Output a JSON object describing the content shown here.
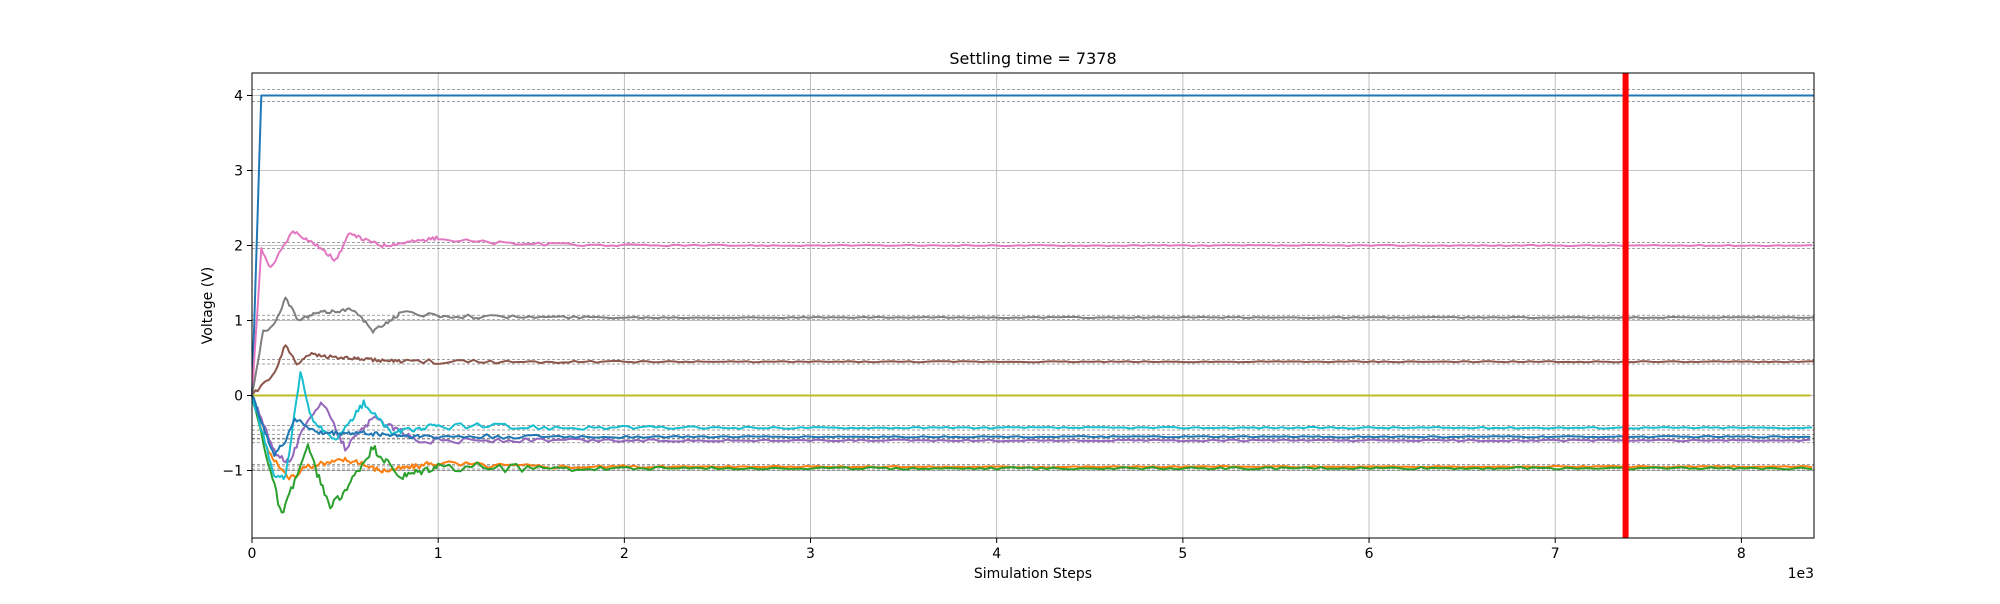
{
  "chart_data": {
    "type": "line",
    "title": "Settling time = 7378",
    "xlabel": "Simulation Steps",
    "ylabel": "Voltage (V)",
    "x_offset_text": "1e3",
    "x_scale": 1000,
    "xlim": [
      0,
      8390
    ],
    "ylim": [
      -1.9,
      4.3
    ],
    "x_ticks": [
      0,
      1000,
      2000,
      3000,
      4000,
      5000,
      6000,
      7000,
      8000
    ],
    "x_tick_labels": [
      "0",
      "1",
      "2",
      "3",
      "4",
      "5",
      "6",
      "7",
      "8"
    ],
    "y_ticks": [
      -1,
      0,
      1,
      2,
      3,
      4
    ],
    "y_tick_labels": [
      "−1",
      "0",
      "1",
      "2",
      "3",
      "4"
    ],
    "grid": true,
    "settling_time": 7378,
    "settling_line_color": "#ff0000",
    "series": [
      {
        "color": "#1f77b4",
        "final": 4.0,
        "tolerance": 0.08,
        "anchors": [
          [
            0,
            0
          ],
          [
            50,
            4.0
          ]
        ],
        "amplitude": 0,
        "decay": 1000,
        "seed": 0
      },
      {
        "color": "#ff7f0e",
        "final": -0.95,
        "tolerance": 0.03,
        "anchors": [
          [
            0,
            0
          ],
          [
            60,
            -0.55
          ],
          [
            100,
            -0.8
          ],
          [
            200,
            -1.1
          ],
          [
            300,
            -0.95
          ],
          [
            500,
            -0.85
          ],
          [
            700,
            -1.0
          ],
          [
            1000,
            -0.9
          ]
        ],
        "amplitude": 0.12,
        "decay": 900,
        "seed": 1
      },
      {
        "color": "#2ca02c",
        "final": -0.97,
        "tolerance": 0.03,
        "anchors": [
          [
            0,
            0
          ],
          [
            80,
            -0.8
          ],
          [
            160,
            -1.6
          ],
          [
            250,
            -1.0
          ],
          [
            300,
            -0.7
          ],
          [
            420,
            -1.5
          ],
          [
            520,
            -1.2
          ],
          [
            650,
            -0.7
          ],
          [
            800,
            -1.1
          ],
          [
            1000,
            -0.95
          ]
        ],
        "amplitude": 0.18,
        "decay": 900,
        "seed": 2
      },
      {
        "color": "#d62728",
        "final": 0.0,
        "tolerance": 0.0,
        "anchors": [
          [
            0,
            0
          ]
        ],
        "amplitude": 0,
        "decay": 1000,
        "seed": 3
      },
      {
        "color": "#9467bd",
        "final": -0.6,
        "tolerance": 0.03,
        "anchors": [
          [
            0,
            0
          ],
          [
            120,
            -0.75
          ],
          [
            200,
            -0.9
          ],
          [
            300,
            -0.3
          ],
          [
            380,
            -0.1
          ],
          [
            500,
            -0.7
          ],
          [
            650,
            -0.3
          ],
          [
            900,
            -0.6
          ]
        ],
        "amplitude": 0.12,
        "decay": 1000,
        "seed": 4
      },
      {
        "color": "#8c564b",
        "final": 0.45,
        "tolerance": 0.03,
        "anchors": [
          [
            0,
            0
          ],
          [
            60,
            0.15
          ],
          [
            120,
            0.3
          ],
          [
            180,
            0.68
          ],
          [
            240,
            0.42
          ],
          [
            300,
            0.55
          ],
          [
            500,
            0.5
          ],
          [
            800,
            0.45
          ]
        ],
        "amplitude": 0.08,
        "decay": 1000,
        "seed": 5
      },
      {
        "color": "#e377c2",
        "final": 2.0,
        "tolerance": 0.04,
        "anchors": [
          [
            0,
            0
          ],
          [
            50,
            1.95
          ],
          [
            100,
            1.7
          ],
          [
            220,
            2.2
          ],
          [
            350,
            2.0
          ],
          [
            450,
            1.8
          ],
          [
            520,
            2.15
          ],
          [
            700,
            2.0
          ],
          [
            1000,
            2.1
          ]
        ],
        "amplitude": 0.08,
        "decay": 1000,
        "seed": 6
      },
      {
        "color": "#7f7f7f",
        "final": 1.04,
        "tolerance": 0.03,
        "anchors": [
          [
            0,
            0
          ],
          [
            60,
            0.85
          ],
          [
            120,
            0.95
          ],
          [
            180,
            1.3
          ],
          [
            250,
            1.0
          ],
          [
            350,
            1.1
          ],
          [
            550,
            1.15
          ],
          [
            650,
            0.85
          ],
          [
            800,
            1.1
          ]
        ],
        "amplitude": 0.08,
        "decay": 1000,
        "seed": 7
      },
      {
        "color": "#bcbd22",
        "final": 0.0,
        "tolerance": 0.0,
        "anchors": [
          [
            0,
            0
          ]
        ],
        "amplitude": 0,
        "decay": 1000,
        "seed": 8
      },
      {
        "color": "#17becf",
        "final": -0.43,
        "tolerance": 0.03,
        "anchors": [
          [
            0,
            0
          ],
          [
            80,
            -0.7
          ],
          [
            120,
            -1.1
          ],
          [
            180,
            -1.1
          ],
          [
            260,
            0.3
          ],
          [
            320,
            -0.3
          ],
          [
            450,
            -0.6
          ],
          [
            600,
            -0.1
          ],
          [
            750,
            -0.5
          ],
          [
            1000,
            -0.4
          ]
        ],
        "amplitude": 0.12,
        "decay": 1200,
        "seed": 9
      },
      {
        "color": "#1f77b4",
        "final": -0.55,
        "tolerance": 0.03,
        "anchors": [
          [
            0,
            0
          ],
          [
            120,
            -0.8
          ],
          [
            180,
            -0.6
          ],
          [
            230,
            -0.3
          ],
          [
            350,
            -0.5
          ],
          [
            600,
            -0.5
          ],
          [
            900,
            -0.55
          ]
        ],
        "amplitude": 0.1,
        "decay": 1000,
        "seed": 10
      }
    ]
  }
}
